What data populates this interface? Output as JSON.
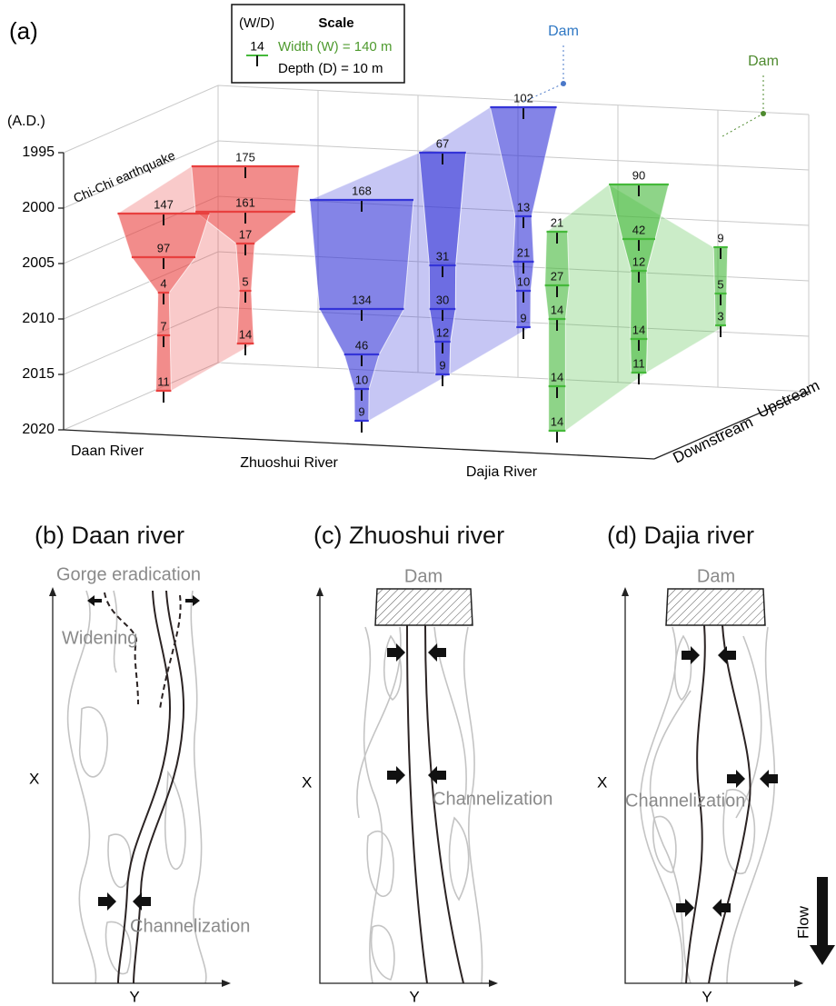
{
  "panel_a": {
    "label": "(a)",
    "scale": {
      "header": "(W/D)",
      "title": "Scale",
      "sample": "14",
      "width": "Width (W) = 140 m",
      "depth": "Depth (D) = 10 m"
    },
    "axis_label": "(A.D.)",
    "years": [
      "1995",
      "2000",
      "2005",
      "2010",
      "2015",
      "2020"
    ],
    "event": "Chi-Chi earthquake",
    "dams": [
      "Dam",
      "Dam"
    ],
    "directions": [
      "Downstream",
      "Upstream"
    ],
    "rivers": [
      {
        "name": "Daan River",
        "color": "#e8403f",
        "sections": [
          [
            147,
            97,
            4,
            7,
            11
          ],
          [
            175,
            161,
            17,
            5,
            14
          ]
        ]
      },
      {
        "name": "Zhuoshui River",
        "color": "#3434d8",
        "sections": [
          [
            168,
            134,
            46,
            10,
            9
          ],
          [
            67,
            31,
            30,
            12,
            9
          ],
          [
            102,
            13,
            21,
            10,
            9
          ]
        ]
      },
      {
        "name": "Dajia River",
        "color": "#45b93a",
        "sections": [
          [
            21,
            27,
            14,
            14,
            14
          ],
          [
            90,
            42,
            12,
            14,
            11
          ],
          [
            9,
            5,
            3
          ]
        ]
      }
    ]
  },
  "panel_b": {
    "title": "(b) Daan river",
    "annotations": [
      "Gorge eradication",
      "Widening",
      "Channelization"
    ],
    "x_axis": "Y",
    "y_axis": "X"
  },
  "panel_c": {
    "title": "(c) Zhuoshui river",
    "annotations": [
      "Dam",
      "Channelization"
    ],
    "x_axis": "Y",
    "y_axis": "X"
  },
  "panel_d": {
    "title": "(d) Dajia river",
    "annotations": [
      "Dam",
      "Channelization",
      "Flow"
    ],
    "x_axis": "Y",
    "y_axis": "X"
  }
}
